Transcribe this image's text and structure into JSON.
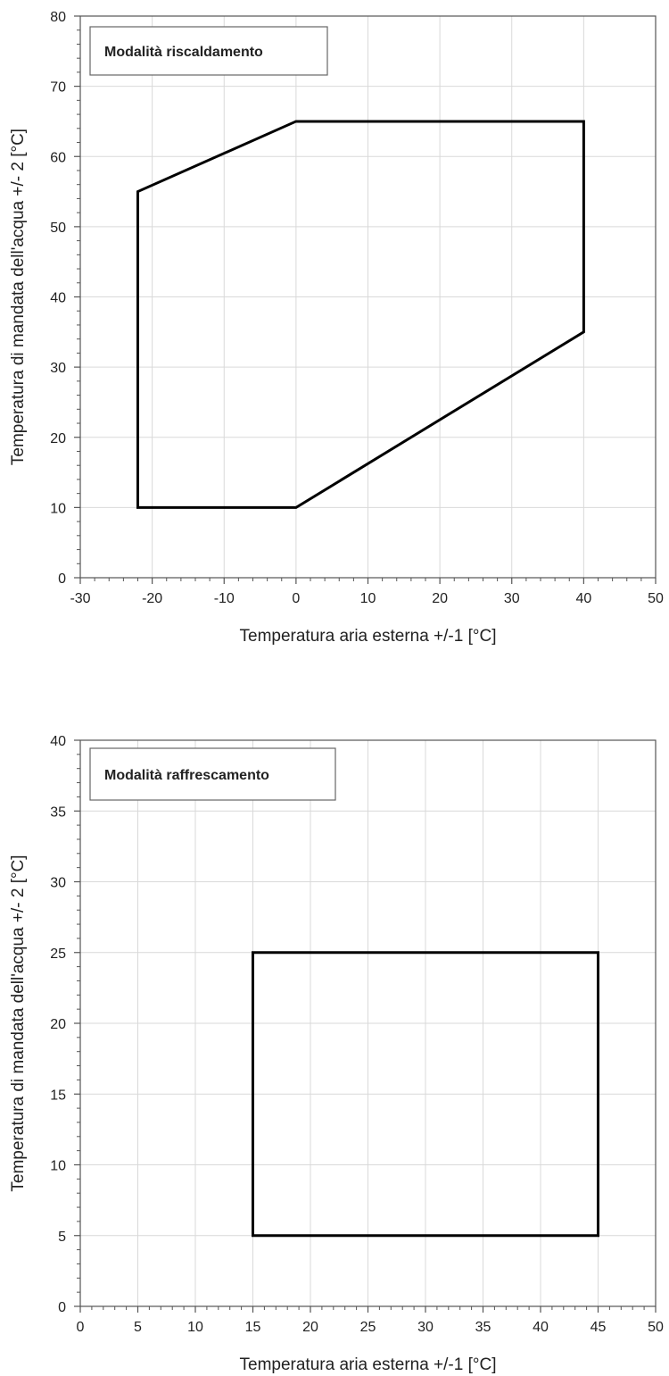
{
  "chart_data": [
    {
      "type": "line",
      "annotation": "Modalità riscaldamento",
      "xlabel": "Temperatura aria esterna +/-1 [°C]",
      "ylabel": "Temperatura di mandata dell'acqua +/- 2 [°C]",
      "xlim": [
        -30,
        50
      ],
      "ylim": [
        0,
        80
      ],
      "x_ticks": [
        -30,
        -20,
        -10,
        0,
        10,
        20,
        30,
        40,
        50
      ],
      "y_ticks": [
        0,
        10,
        20,
        30,
        40,
        50,
        60,
        70,
        80
      ],
      "grid": true,
      "series": [
        {
          "closed": true,
          "points": [
            [
              -22,
              10
            ],
            [
              -22,
              55
            ],
            [
              0,
              65
            ],
            [
              40,
              65
            ],
            [
              40,
              35
            ],
            [
              0,
              10
            ],
            [
              -22,
              10
            ]
          ]
        }
      ]
    },
    {
      "type": "line",
      "annotation": "Modalità raffrescamento",
      "xlabel": "Temperatura aria esterna +/-1 [°C]",
      "ylabel": "Temperatura di mandata dell'acqua +/- 2 [°C]",
      "xlim": [
        0,
        50
      ],
      "ylim": [
        0,
        40
      ],
      "x_ticks": [
        0,
        5,
        10,
        15,
        20,
        25,
        30,
        35,
        40,
        45,
        50
      ],
      "y_ticks": [
        0,
        5,
        10,
        15,
        20,
        25,
        30,
        35,
        40
      ],
      "grid": true,
      "series": [
        {
          "closed": true,
          "points": [
            [
              15,
              5
            ],
            [
              15,
              25
            ],
            [
              45,
              25
            ],
            [
              45,
              5
            ],
            [
              15,
              5
            ]
          ]
        }
      ]
    }
  ]
}
